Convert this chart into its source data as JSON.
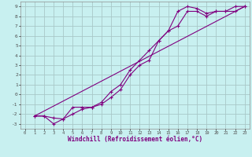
{
  "xlabel": "Windchill (Refroidissement éolien,°C)",
  "bg_color": "#c8f0f0",
  "grid_color": "#a8c8c8",
  "line_color": "#800080",
  "xlim": [
    -0.5,
    23.5
  ],
  "ylim": [
    -3.5,
    9.5
  ],
  "xticks": [
    0,
    1,
    2,
    3,
    4,
    5,
    6,
    7,
    8,
    9,
    10,
    11,
    12,
    13,
    14,
    15,
    16,
    17,
    18,
    19,
    20,
    21,
    22,
    23
  ],
  "yticks": [
    -3,
    -2,
    -1,
    0,
    1,
    2,
    3,
    4,
    5,
    6,
    7,
    8,
    9
  ],
  "line1_x": [
    1,
    2,
    3,
    4,
    5,
    6,
    7,
    8,
    9,
    10,
    11,
    12,
    13,
    14,
    15,
    16,
    17,
    18,
    19,
    20,
    21,
    22,
    23
  ],
  "line1_y": [
    -2.2,
    -2.2,
    -3.0,
    -2.5,
    -1.3,
    -1.3,
    -1.3,
    -0.8,
    0.3,
    1.0,
    2.5,
    3.5,
    4.5,
    5.5,
    6.5,
    8.5,
    9.0,
    8.8,
    8.3,
    8.5,
    8.5,
    9.0,
    9.0
  ],
  "line2_x": [
    1,
    2,
    3,
    4,
    5,
    6,
    7,
    8,
    9,
    10,
    11,
    12,
    13,
    14,
    15,
    16,
    17,
    18,
    19,
    20,
    21,
    22,
    23
  ],
  "line2_y": [
    -2.2,
    -2.2,
    -2.4,
    -2.5,
    -2.0,
    -1.5,
    -1.3,
    -1.0,
    -0.3,
    0.5,
    2.0,
    3.0,
    3.5,
    5.5,
    6.5,
    7.0,
    8.5,
    8.5,
    8.0,
    8.5,
    8.5,
    8.5,
    9.0
  ],
  "line3_x": [
    1,
    23
  ],
  "line3_y": [
    -2.2,
    9.0
  ]
}
